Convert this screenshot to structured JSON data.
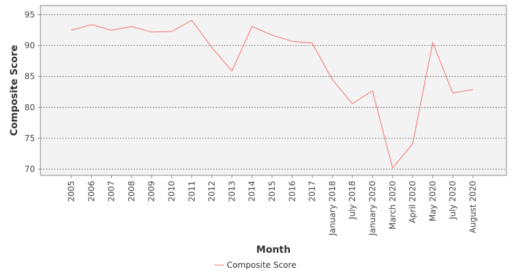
{
  "chart_data": {
    "type": "line",
    "title": "",
    "xlabel": "Month",
    "ylabel": "Composite Score",
    "categories": [
      "2005",
      "2006",
      "2007",
      "2008",
      "2009",
      "2010",
      "2011",
      "2012",
      "2013",
      "2014",
      "2015",
      "2016",
      "2017",
      "January 2018",
      "July 2018",
      "January 2020",
      "March 2020",
      "April 2020",
      "May 2020",
      "July 2020",
      "August 2020"
    ],
    "series": [
      {
        "name": "Composite Score",
        "color": "#f26b6b",
        "values": [
          92.5,
          93.4,
          92.5,
          93.1,
          92.2,
          92.3,
          94.1,
          89.7,
          85.9,
          93.1,
          91.7,
          90.7,
          90.4,
          84.5,
          80.6,
          82.7,
          70.2,
          74.1,
          90.5,
          82.3,
          82.9
        ]
      }
    ],
    "ylim": [
      69,
      96.5
    ],
    "yticks": [
      70,
      75,
      80,
      85,
      90,
      95
    ],
    "grid": true,
    "legend": "bottom",
    "plot_background": "#f3f3f3",
    "gridline_color": "#555555"
  }
}
